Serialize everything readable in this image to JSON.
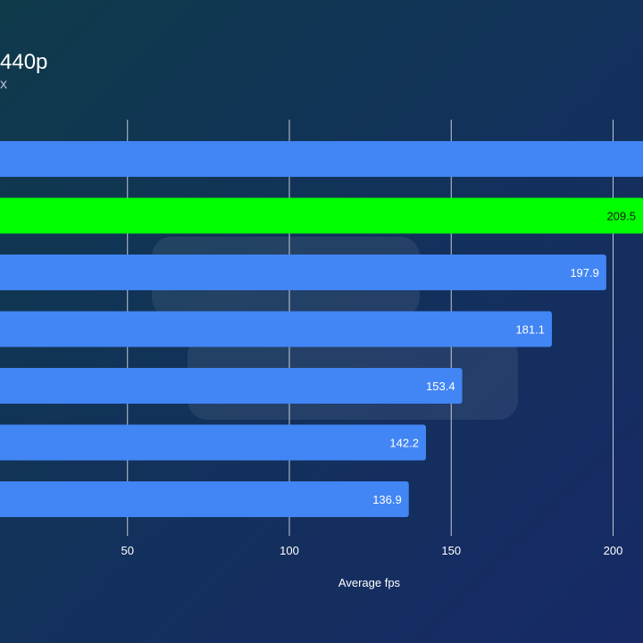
{
  "header": {
    "title": "440p",
    "subtitle": "x"
  },
  "colors": {
    "bar_default": "#4285f4",
    "bar_highlight": "#00ff00",
    "grid": "#dfe4ee",
    "label_on_blue": "#ffffff",
    "label_on_green": "#1a1a1a"
  },
  "chart_data": {
    "type": "bar",
    "orientation": "horizontal",
    "title": "440p",
    "subtitle": "x",
    "xlabel": "Average fps",
    "ylabel": "",
    "xlim": [
      0,
      210
    ],
    "xticks": [
      50,
      100,
      150,
      200
    ],
    "grid": true,
    "categories": [
      "",
      "",
      "",
      "",
      "",
      "",
      ""
    ],
    "values": [
      215,
      209.5,
      197.9,
      181.1,
      153.4,
      142.2,
      136.9
    ],
    "value_labels": [
      "",
      "209.5",
      "197.9",
      "181.1",
      "153.4",
      "142.2",
      "136.9"
    ],
    "highlight_index": 1
  }
}
